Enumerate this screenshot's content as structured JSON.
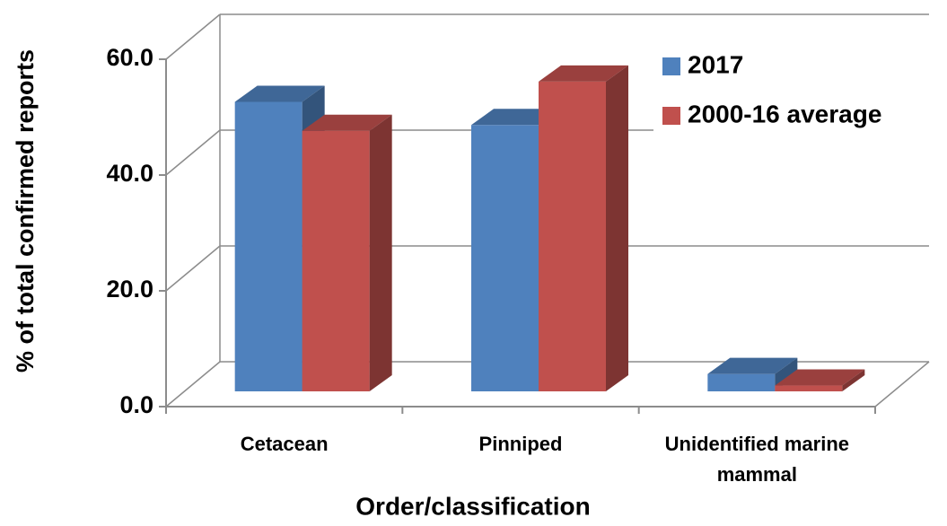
{
  "chart_data": {
    "type": "bar3d",
    "y_label": "% of total confirmed reports",
    "x_label": "Order/classification",
    "categories": [
      "Cetacean",
      "Pinniped",
      "Unidentified marine mammal"
    ],
    "series": [
      {
        "name": "2017",
        "color": "#4f81bd",
        "values": [
          50,
          46,
          3
        ]
      },
      {
        "name": "2000-16 average",
        "color": "#c0504d",
        "values": [
          45,
          53.5,
          1
        ]
      }
    ],
    "ylim": [
      0,
      60
    ],
    "yticks": [
      {
        "value": 0,
        "label": "0.0"
      },
      {
        "value": 20,
        "label": "20.0"
      },
      {
        "value": 40,
        "label": "40.0"
      },
      {
        "value": 60,
        "label": "60.0"
      }
    ],
    "grid": true,
    "legend": "top-right"
  }
}
